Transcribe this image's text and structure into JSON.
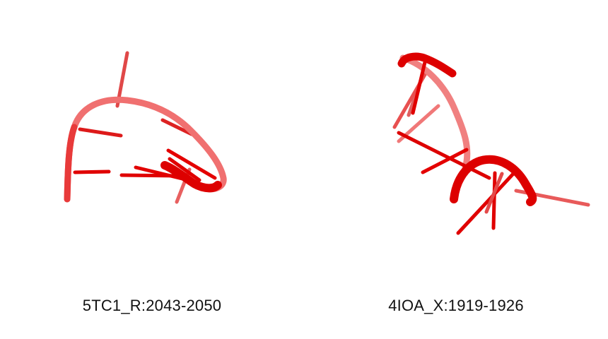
{
  "panels": [
    {
      "id": "5TC1",
      "label": "5TC1_R:2043-2050"
    },
    {
      "id": "4IOA",
      "label": "4IOA_X:1919-1926"
    }
  ],
  "colors": {
    "backbone_light": "#f07070",
    "backbone_mid": "#e83434",
    "backbone_dark": "#dd0000",
    "base_light": "#e85656",
    "base_dark": "#e00000"
  }
}
